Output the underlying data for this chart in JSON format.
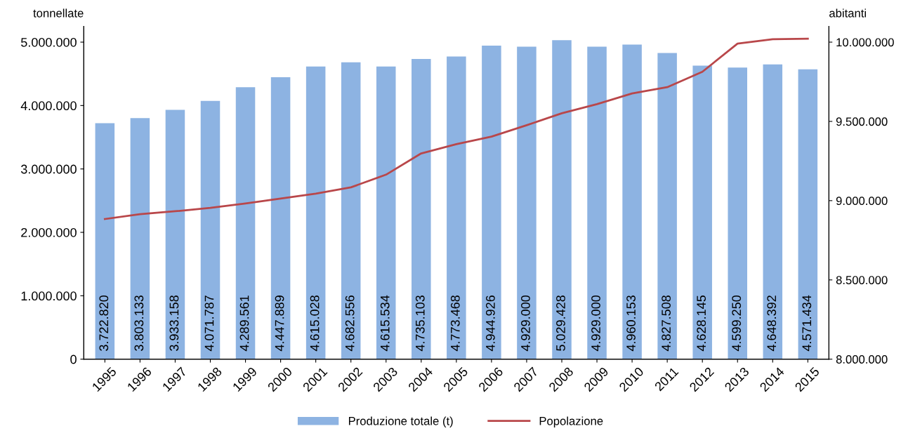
{
  "chart_data": {
    "type": "bar",
    "ylabel": "tonnellate",
    "y2label": "abitanti",
    "categories": [
      "1995",
      "1996",
      "1997",
      "1998",
      "1999",
      "2000",
      "2001",
      "2002",
      "2003",
      "2004",
      "2005",
      "2006",
      "2007",
      "2008",
      "2009",
      "2010",
      "2011",
      "2012",
      "2013",
      "2014",
      "2015"
    ],
    "series": [
      {
        "name": "Produzione totale (t)",
        "color": "#8db3e2",
        "values": [
          3722820,
          3803133,
          3933158,
          4071787,
          4289561,
          4447889,
          4615028,
          4682556,
          4615534,
          4735103,
          4773468,
          4944926,
          4929000,
          5029428,
          4929000,
          4960153,
          4827508,
          4628145,
          4599250,
          4648392,
          4571434
        ],
        "value_labels": [
          "3.722.820",
          "3.803.133",
          "3.933.158",
          "4.071.787",
          "4.289.561",
          "4.447.889",
          "4.615.028",
          "4.682.556",
          "4.615.534",
          "4.735.103",
          "4.773.468",
          "4.944.926",
          "4.929.000",
          "5.029.428",
          "4.929.000",
          "4.960.153",
          "4.827.508",
          "4.628.145",
          "4.599.250",
          "4.648.392",
          "4.571.434"
        ]
      },
      {
        "name": "Popolazione",
        "type": "line",
        "axis": "y2",
        "color": "#b9474a",
        "values": [
          8884000,
          8915000,
          8933000,
          8955000,
          8982000,
          9013000,
          9044000,
          9084000,
          9164000,
          9298000,
          9356000,
          9404000,
          9476000,
          9551000,
          9609000,
          9676000,
          9716000,
          9813000,
          9991000,
          10018000,
          10022000
        ]
      }
    ],
    "ylim": [
      0,
      5250000
    ],
    "yticks": [
      {
        "value": 0,
        "label": "0"
      },
      {
        "value": 1000000,
        "label": "1.000.000"
      },
      {
        "value": 2000000,
        "label": "2.000.000"
      },
      {
        "value": 3000000,
        "label": "3.000.000"
      },
      {
        "value": 4000000,
        "label": "4.000.000"
      },
      {
        "value": 5000000,
        "label": "5.000.000"
      }
    ],
    "y2lim": [
      8000000,
      10100000
    ],
    "y2ticks": [
      {
        "value": 8000000,
        "label": "8.000.000"
      },
      {
        "value": 8500000,
        "label": "8.500.000"
      },
      {
        "value": 9000000,
        "label": "9.000.000"
      },
      {
        "value": 9500000,
        "label": "9.500.000"
      },
      {
        "value": 10000000,
        "label": "10.000.000"
      }
    ],
    "grid": false,
    "legend": "bottom",
    "marker": "none",
    "line_style": "solid"
  }
}
